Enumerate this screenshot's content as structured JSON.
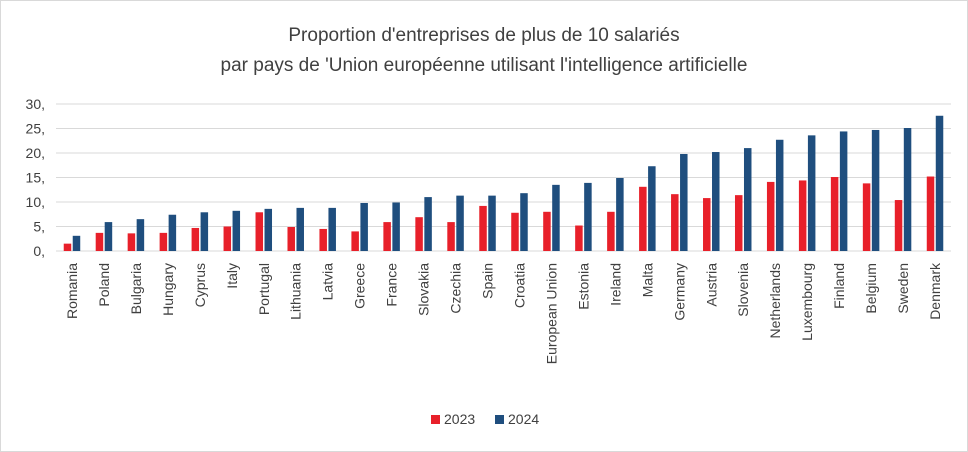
{
  "chart_data": {
    "type": "bar",
    "title": [
      "Proportion d'entreprises de plus de 10 salariés",
      "par pays de 'Union européenne utilisant l'intelligence artificielle"
    ],
    "xlabel": "",
    "ylabel": "",
    "ylim": [
      0,
      30
    ],
    "yticks": [
      "0,",
      "5,",
      "10,",
      "15,",
      "20,",
      "25,",
      "30,"
    ],
    "grid": true,
    "legend_position": "bottom",
    "categories": [
      "Romania",
      "Poland",
      "Bulgaria",
      "Hungary",
      "Cyprus",
      "Italy",
      "Portugal",
      "Lithuania",
      "Latvia",
      "Greece",
      "France",
      "Slovakia",
      "Czechia",
      "Spain",
      "Croatia",
      "European Union",
      "Estonia",
      "Ireland",
      "Malta",
      "Germany",
      "Austria",
      "Slovenia",
      "Netherlands",
      "Luxembourg",
      "Finland",
      "Belgium",
      "Sweden",
      "Denmark"
    ],
    "series": [
      {
        "name": "2023",
        "color": "#e8202a",
        "values": [
          1.5,
          3.7,
          3.6,
          3.7,
          4.7,
          5.0,
          7.9,
          4.9,
          4.5,
          4.0,
          5.9,
          6.9,
          5.9,
          9.2,
          7.8,
          8.0,
          5.2,
          8.0,
          13.1,
          11.6,
          10.8,
          11.4,
          14.1,
          14.4,
          15.1,
          13.8,
          10.4,
          15.2
        ]
      },
      {
        "name": "2024",
        "color": "#1f4e7e",
        "values": [
          3.1,
          5.9,
          6.5,
          7.4,
          7.9,
          8.2,
          8.6,
          8.8,
          8.8,
          9.8,
          9.9,
          11.0,
          11.3,
          11.3,
          11.8,
          13.5,
          13.9,
          14.9,
          17.3,
          19.8,
          20.2,
          21.0,
          22.7,
          23.6,
          24.4,
          24.7,
          25.1,
          27.6
        ]
      }
    ]
  }
}
